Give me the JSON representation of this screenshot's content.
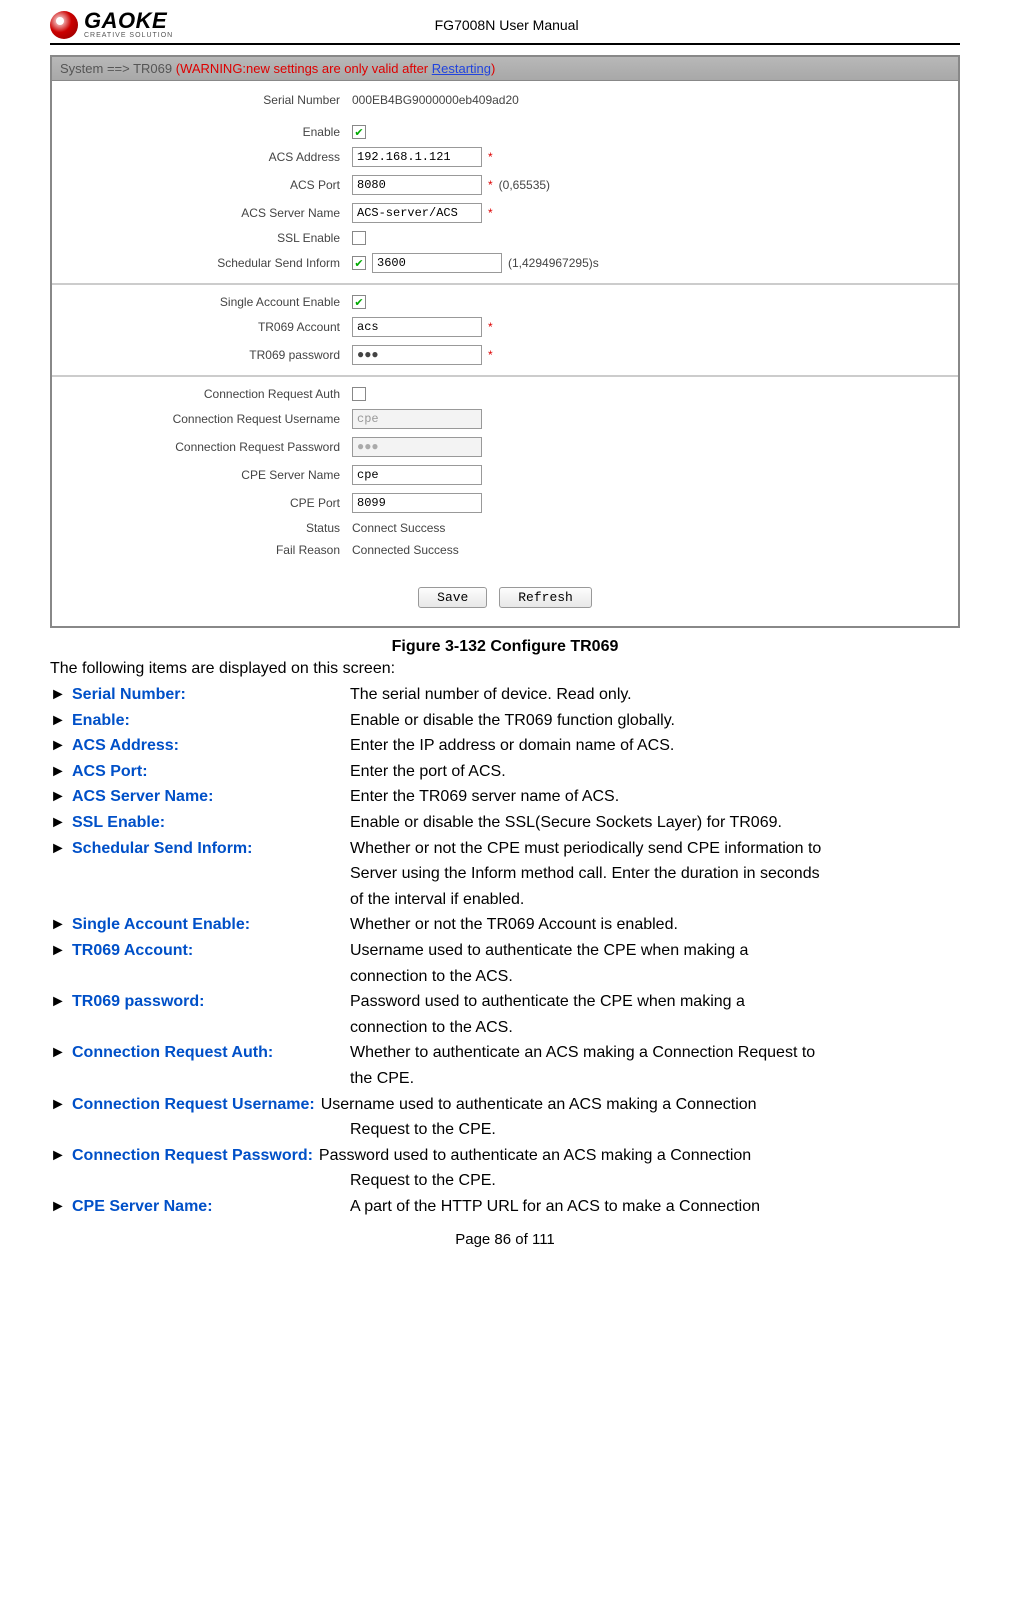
{
  "header": {
    "logo_main": "GAOKE",
    "logo_sub": "CREATIVE SOLUTION",
    "doc_title": "FG7008N User Manual"
  },
  "breadcrumb": {
    "prefix": "System ==> TR069",
    "warn_open": "(WARNING:new settings are only valid after ",
    "link": "Restarting",
    "warn_close": ")"
  },
  "form": {
    "serial_label": "Serial Number",
    "serial_value": "000EB4BG9000000eb409ad20",
    "enable_label": "Enable",
    "acs_addr_label": "ACS Address",
    "acs_addr_value": "192.168.1.121",
    "acs_port_label": "ACS Port",
    "acs_port_value": "8080",
    "acs_port_hint": "(0,65535)",
    "acs_server_label": "ACS Server Name",
    "acs_server_value": "ACS-server/ACS",
    "ssl_label": "SSL Enable",
    "sched_label": "Schedular Send Inform",
    "sched_value": "3600",
    "sched_hint": "(1,4294967295)s",
    "single_label": "Single Account Enable",
    "tr069_acct_label": "TR069 Account",
    "tr069_acct_value": "acs",
    "tr069_pwd_label": "TR069 password",
    "tr069_pwd_value": "●●●",
    "conn_auth_label": "Connection Request Auth",
    "conn_user_label": "Connection Request Username",
    "conn_user_value": "cpe",
    "conn_pwd_label": "Connection Request Password",
    "conn_pwd_value": "●●●",
    "cpe_server_label": "CPE Server Name",
    "cpe_server_value": "cpe",
    "cpe_port_label": "CPE Port",
    "cpe_port_value": "8099",
    "status_label": "Status",
    "status_value": "Connect Success",
    "fail_label": "Fail Reason",
    "fail_value": "Connected Success",
    "save_btn": "Save",
    "refresh_btn": "Refresh",
    "asterisk": "*"
  },
  "caption": "Figure 3-132  Configure TR069",
  "intro": "The following items are displayed on this screen:",
  "defs": [
    {
      "term": "Serial Number:",
      "desc": "The serial number of device. Read only."
    },
    {
      "term": "Enable:",
      "desc": "Enable or disable the TR069 function globally."
    },
    {
      "term": "ACS Address:",
      "desc": "Enter the IP address or domain name of ACS."
    },
    {
      "term": "ACS Port:",
      "desc": "Enter the port of ACS."
    },
    {
      "term": "ACS Server Name:",
      "desc": "Enter the TR069 server name of ACS."
    },
    {
      "term": "SSL Enable:",
      "desc": "Enable or disable the SSL(Secure Sockets Layer) for TR069."
    },
    {
      "term": "Schedular Send Inform:",
      "desc": "Whether or not the CPE must periodically send CPE information to",
      "cont": [
        "Server using the Inform method call. Enter the duration in seconds",
        "of the interval if enabled."
      ]
    },
    {
      "term": "Single Account Enable:",
      "desc": "Whether or not the TR069 Account is enabled."
    },
    {
      "term": "TR069 Account:",
      "desc": "Username used to authenticate the CPE when making a",
      "cont": [
        "connection to the ACS."
      ]
    },
    {
      "term": "TR069 password:",
      "desc": "Password used to authenticate the CPE when making a",
      "cont": [
        "connection to the ACS."
      ]
    },
    {
      "term": "Connection Request Auth:",
      "desc": "Whether to authenticate an ACS making a Connection Request to",
      "cont": [
        "the CPE."
      ]
    },
    {
      "term": "Connection Request Username:",
      "desc": "Username used to authenticate an ACS making a Connection",
      "cont": [
        "Request to the CPE."
      ],
      "tight": true
    },
    {
      "term": "Connection Request Password:",
      "desc": "Password used to authenticate an ACS making a Connection",
      "cont": [
        "Request to the CPE."
      ],
      "tight": true
    },
    {
      "term": "CPE Server Name:",
      "desc": "A part of the HTTP URL for an ACS to make a Connection"
    }
  ],
  "footer": "Page 86 of 111",
  "arrow": "►"
}
